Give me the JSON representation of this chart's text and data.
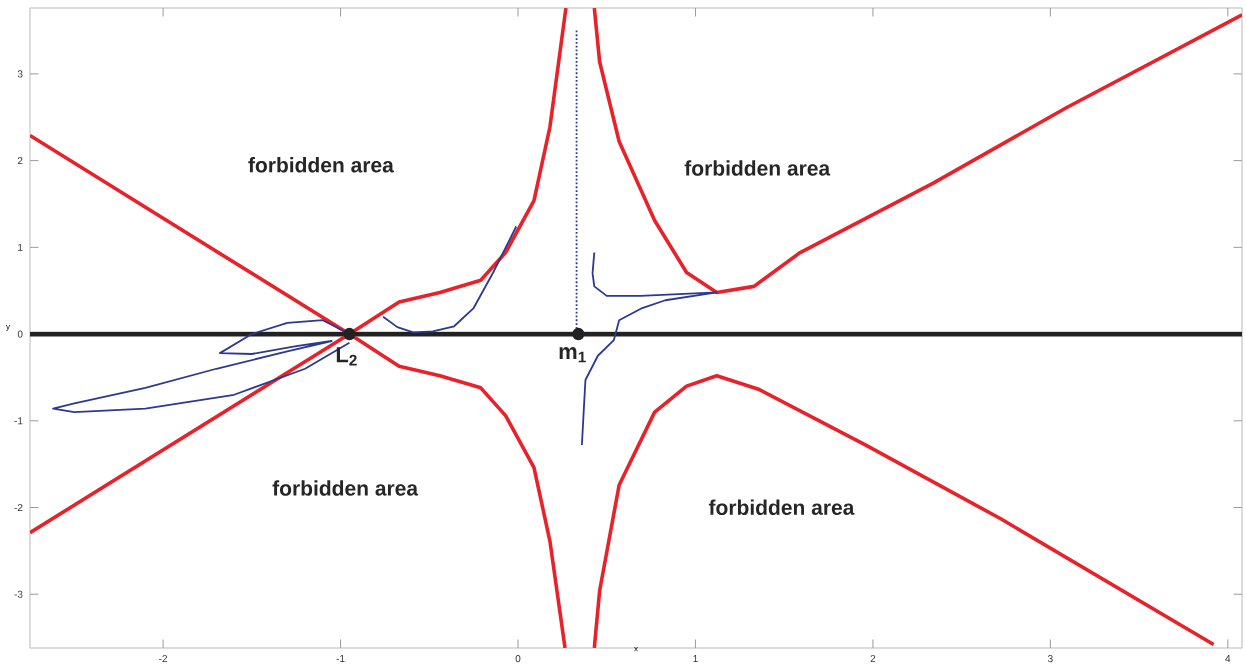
{
  "chart_data": {
    "type": "line",
    "xlabel": "x",
    "ylabel": "y",
    "xlim": [
      -2.75,
      4.08
    ],
    "ylim": [
      -3.62,
      3.76
    ],
    "xticks": [
      -2,
      -1,
      0,
      1,
      2,
      3,
      4
    ],
    "yticks": [
      -3,
      -2,
      -1,
      0,
      1,
      2,
      3
    ],
    "grid": false,
    "marker": "none",
    "line_style": "solid",
    "ref_lines": [
      {
        "axis": "y",
        "value": 0,
        "color": "#222222"
      }
    ],
    "series": [
      {
        "color": "#e8222a",
        "x": [
          -2.75,
          -0.95,
          -0.67,
          -0.44,
          -0.21,
          -0.07,
          0.09,
          0.18,
          0.27
        ],
        "values": [
          2.29,
          0,
          0.37,
          0.48,
          0.62,
          0.94,
          1.54,
          2.39,
          3.76
        ]
      },
      {
        "color": "#e8222a",
        "x": [
          -2.75,
          -0.95,
          -0.67,
          -0.44,
          -0.21,
          -0.07,
          0.09,
          0.18,
          0.265
        ],
        "values": [
          -2.29,
          0,
          -0.37,
          -0.48,
          -0.62,
          -0.94,
          -1.54,
          -2.39,
          -3.62
        ]
      },
      {
        "color": "#e8222a",
        "x": [
          0.43,
          0.46,
          0.57,
          0.77,
          0.95,
          1.12,
          1.33,
          1.59,
          2.34,
          3.09,
          4.08
        ],
        "values": [
          3.76,
          3.14,
          2.22,
          1.31,
          0.71,
          0.48,
          0.55,
          0.94,
          1.74,
          2.61,
          3.68
        ]
      },
      {
        "color": "#e8222a",
        "x": [
          0.43,
          0.46,
          0.57,
          0.77,
          0.95,
          1.12,
          1.36,
          1.96,
          2.72,
          3.92
        ],
        "values": [
          -3.62,
          -2.96,
          -1.74,
          -0.9,
          -0.6,
          -0.48,
          -0.64,
          -1.28,
          -2.13,
          -3.58
        ]
      },
      {
        "color": "#2b3990",
        "x": [
          -0.95,
          -1.1,
          -1.3,
          -1.5,
          -1.68,
          -1.5,
          -1.25,
          -1.05,
          -1.3,
          -1.7,
          -2.1,
          -2.5,
          -2.62,
          -2.5,
          -2.1,
          -1.6,
          -1.2,
          -0.95
        ],
        "values": [
          0,
          0.16,
          0.13,
          0.0,
          -0.22,
          -0.23,
          -0.14,
          -0.08,
          -0.2,
          -0.4,
          -0.62,
          -0.8,
          -0.86,
          -0.9,
          -0.86,
          -0.7,
          -0.4,
          -0.1
        ]
      },
      {
        "color": "#2b3990",
        "x": [
          -0.76,
          -0.68,
          -0.59,
          -0.48,
          -0.36,
          -0.25,
          -0.14,
          -0.01
        ],
        "values": [
          0.2,
          0.08,
          0.02,
          0.03,
          0.09,
          0.3,
          0.71,
          1.24
        ]
      },
      {
        "color": "#2b3990",
        "x": [
          0.36,
          0.37,
          0.38,
          0.45,
          0.54,
          0.57,
          0.7,
          0.83,
          1.12
        ],
        "values": [
          -1.28,
          -0.9,
          -0.53,
          -0.25,
          -0.07,
          0.16,
          0.3,
          0.39,
          0.48
        ]
      },
      {
        "color": "#2b3990",
        "x": [
          0.43,
          0.42,
          0.43,
          0.5,
          0.69,
          1.12
        ],
        "values": [
          0.94,
          0.7,
          0.55,
          0.44,
          0.44,
          0.48
        ]
      },
      {
        "color": "#2b3990",
        "line_style": "dotted",
        "x": [
          0.33,
          0.33
        ],
        "values": [
          3.5,
          0
        ]
      },
      {
        "type": "scatter",
        "marker": "circle",
        "name": "L$_{2}$",
        "color": "#222222",
        "x": [
          -0.95
        ],
        "values": [
          0
        ]
      },
      {
        "type": "scatter",
        "marker": "circle",
        "name": "m$_{1}$",
        "color": "#222222",
        "x": [
          0.34
        ],
        "values": [
          0
        ]
      }
    ],
    "annotations": [
      "forbidden area",
      "forbidden area",
      "forbidden area",
      "forbidden area"
    ]
  }
}
